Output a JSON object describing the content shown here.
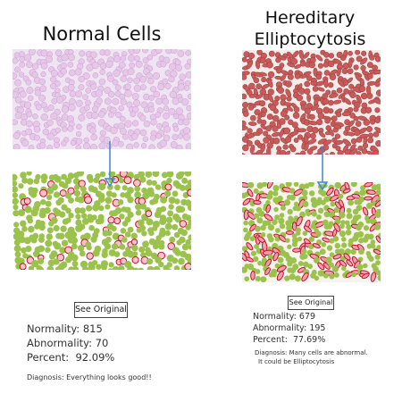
{
  "left": {
    "title": "Normal Cells",
    "button_label": "See Original",
    "stats": {
      "normality_label": "Normality:",
      "normality_value": "815",
      "abnormality_label": "Abnormality:",
      "abnormality_value": "70",
      "percent_label": "Percent:",
      "percent_value": "92.09%"
    },
    "diagnosis": "Diagnosis: Everything looks good!!"
  },
  "right": {
    "title_line1": "Hereditary",
    "title_line2": "Elliptocytosis",
    "button_label": "See Original",
    "stats": {
      "normality_label": "Normality:",
      "normality_value": "679",
      "abnormality_label": "Abnormality:",
      "abnormality_value": "195",
      "percent_label": "Percent:",
      "percent_value": "77.69%"
    },
    "diagnosis_line1": "Diagnosis: Many cells are abnormal.",
    "diagnosis_line2": "It could be Elliptocytosis"
  },
  "colors": {
    "normal_cell_fill": "#e7c7e8",
    "elliptocyte_fill": "#c85a5a",
    "healthy_marker": "#9bc24c",
    "abnormal_outline": "#c8102e",
    "arrow": "#3f86d6"
  }
}
